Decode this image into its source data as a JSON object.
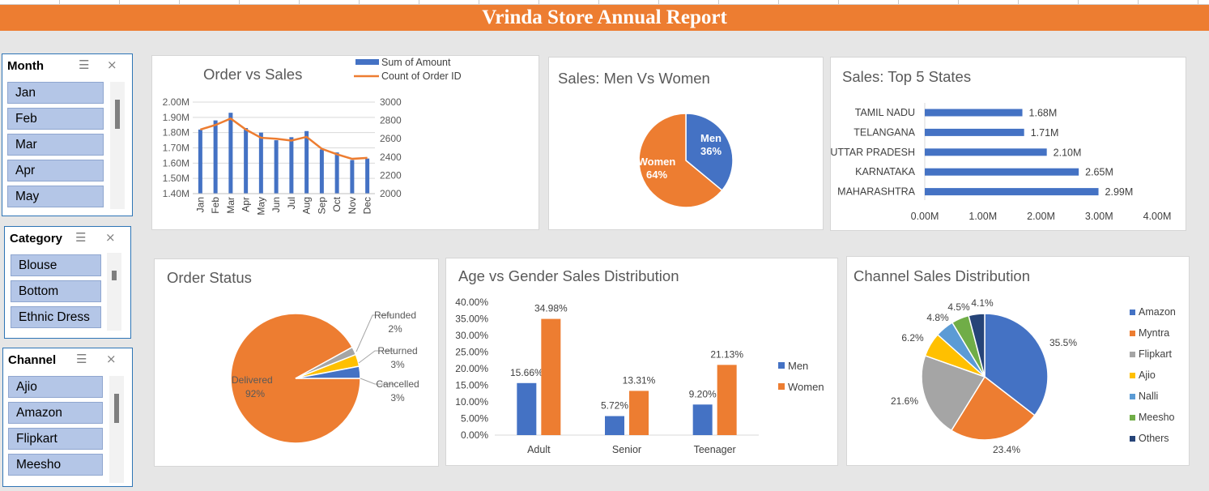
{
  "report_title": "Vrinda Store Annual Report",
  "slicers": {
    "month": {
      "header": "Month",
      "items": [
        "Jan",
        "Feb",
        "Mar",
        "Apr",
        "May"
      ]
    },
    "category": {
      "header": "Category",
      "items": [
        "Blouse",
        "Bottom",
        "Ethnic Dress"
      ]
    },
    "channel": {
      "header": "Channel",
      "items": [
        "Ajio",
        "Amazon",
        "Flipkart",
        "Meesho"
      ]
    }
  },
  "chart_data": [
    {
      "type": "bar+line",
      "title": "Order vs Sales",
      "categories": [
        "Jan",
        "Feb",
        "Mar",
        "Apr",
        "May",
        "Jun",
        "Jul",
        "Aug",
        "Sep",
        "Oct",
        "Nov",
        "Dec"
      ],
      "series": [
        {
          "name": "Sum of Amount",
          "type": "bar",
          "color": "#4472c4",
          "values": [
            1.82,
            1.88,
            1.93,
            1.83,
            1.8,
            1.75,
            1.77,
            1.81,
            1.69,
            1.67,
            1.62,
            1.63
          ]
        },
        {
          "name": "Count of Order ID",
          "type": "line",
          "color": "#ed7d31",
          "values": [
            2700,
            2750,
            2820,
            2700,
            2610,
            2600,
            2580,
            2620,
            2490,
            2430,
            2380,
            2390
          ]
        }
      ],
      "y_left_ticks": [
        "2.00M",
        "1.90M",
        "1.80M",
        "1.70M",
        "1.60M",
        "1.50M",
        "1.40M"
      ],
      "ylim_left": [
        1.4,
        2.0
      ],
      "y_right_ticks": [
        "3000",
        "2800",
        "2600",
        "2400",
        "2200",
        "2000"
      ],
      "ylim_right": [
        2000,
        3000
      ],
      "legend": "top-right"
    },
    {
      "type": "pie",
      "title": "Sales: Men Vs Women",
      "slices": [
        {
          "label": "Men",
          "value": 36,
          "display": "36%",
          "color": "#4472c4"
        },
        {
          "label": "Women",
          "value": 64,
          "display": "64%",
          "color": "#ed7d31"
        }
      ]
    },
    {
      "type": "bar",
      "orientation": "horizontal",
      "title": "Sales: Top 5 States",
      "categories": [
        "TAMIL NADU",
        "TELANGANA",
        "UTTAR PRADESH",
        "KARNATAKA",
        "MAHARASHTRA"
      ],
      "values": [
        1.68,
        1.71,
        2.1,
        2.65,
        2.99
      ],
      "value_labels": [
        "1.68M",
        "1.71M",
        "2.10M",
        "2.65M",
        "2.99M"
      ],
      "x_ticks": [
        "0.00M",
        "1.00M",
        "2.00M",
        "3.00M",
        "4.00M"
      ],
      "xlim": [
        0,
        4
      ],
      "color": "#4472c4"
    },
    {
      "type": "pie",
      "title": "Order Status",
      "slices": [
        {
          "label": "Delivered",
          "value": 92,
          "display": "92%",
          "color": "#ed7d31"
        },
        {
          "label": "Refunded",
          "value": 2,
          "display": "2%",
          "color": "#a5a5a5"
        },
        {
          "label": "Returned",
          "value": 3,
          "display": "3%",
          "color": "#ffc000"
        },
        {
          "label": "Cancelled",
          "value": 3,
          "display": "3%",
          "color": "#4472c4"
        }
      ]
    },
    {
      "type": "bar",
      "title": "Age vs Gender Sales Distribution",
      "categories": [
        "Adult",
        "Senior",
        "Teenager"
      ],
      "series": [
        {
          "name": "Men",
          "color": "#4472c4",
          "values": [
            15.66,
            5.72,
            9.2
          ],
          "labels": [
            "15.66%",
            "5.72%",
            "9.20%"
          ]
        },
        {
          "name": "Women",
          "color": "#ed7d31",
          "values": [
            34.98,
            13.31,
            21.13
          ],
          "labels": [
            "34.98%",
            "13.31%",
            "21.13%"
          ]
        }
      ],
      "y_ticks": [
        "40.00%",
        "35.00%",
        "30.00%",
        "25.00%",
        "20.00%",
        "15.00%",
        "10.00%",
        "5.00%",
        "0.00%"
      ],
      "ylim": [
        0,
        40
      ],
      "legend": "right"
    },
    {
      "type": "pie",
      "title": "Channel Sales Distribution",
      "slices": [
        {
          "label": "Amazon",
          "value": 35.5,
          "display": "35.5%",
          "color": "#4472c4"
        },
        {
          "label": "Myntra",
          "value": 23.4,
          "display": "23.4%",
          "color": "#ed7d31"
        },
        {
          "label": "Flipkart",
          "value": 21.6,
          "display": "21.6%",
          "color": "#a5a5a5"
        },
        {
          "label": "Ajio",
          "value": 6.2,
          "display": "6.2%",
          "color": "#ffc000"
        },
        {
          "label": "Nalli",
          "value": 4.8,
          "display": "4.8%",
          "color": "#5b9bd5"
        },
        {
          "label": "Meesho",
          "value": 4.5,
          "display": "4.5%",
          "color": "#70ad47"
        },
        {
          "label": "Others",
          "value": 4.1,
          "display": "4.1%",
          "color": "#264478"
        }
      ],
      "legend": "right"
    }
  ]
}
